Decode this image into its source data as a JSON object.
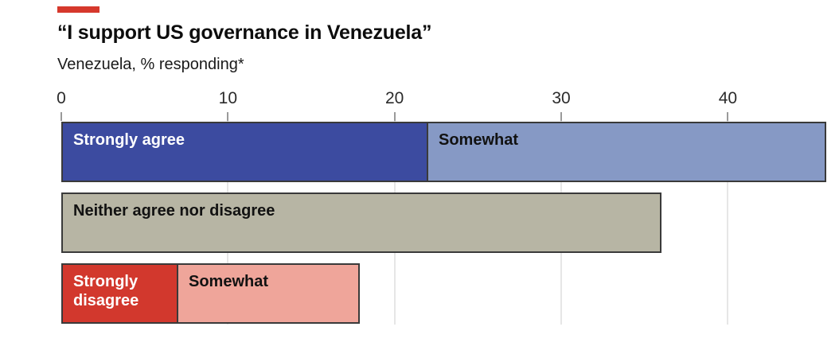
{
  "header": {
    "accent_color": "#d6382c",
    "title": "“I support US governance in Venezuela”",
    "subtitle": "Venezuela, % responding*"
  },
  "chart_data": {
    "type": "bar",
    "orientation": "horizontal",
    "unit": "%",
    "title": "“I support US governance in Venezuela”",
    "subtitle": "Venezuela, % responding*",
    "xlim": [
      0,
      46
    ],
    "ticks": [
      0,
      10,
      20,
      30,
      40
    ],
    "grid": true,
    "colors": {
      "border": "#3a3a3a",
      "gridline": "#e6e6e6",
      "tick": "#9a9a9a"
    },
    "rows": [
      {
        "name": "agree",
        "segments": [
          {
            "label": "Strongly agree",
            "value": 22,
            "color": "#3c4ba0",
            "text_color": "#ffffff"
          },
          {
            "label": "Somewhat",
            "value": 24,
            "color": "#8699c5",
            "text_color": "#121212"
          }
        ]
      },
      {
        "name": "neither",
        "segments": [
          {
            "label": "Neither agree nor disagree",
            "value": 36,
            "color": "#b7b5a4",
            "text_color": "#121212"
          }
        ]
      },
      {
        "name": "disagree",
        "segments": [
          {
            "label": "Strongly disagree",
            "value": 7,
            "color": "#d2382d",
            "text_color": "#ffffff"
          },
          {
            "label": "Somewhat",
            "value": 11,
            "color": "#efa59a",
            "text_color": "#121212"
          }
        ]
      }
    ]
  }
}
